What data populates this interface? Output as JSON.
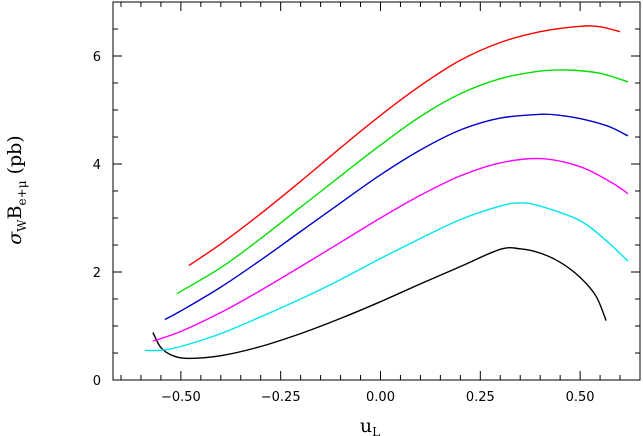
{
  "chart_data": {
    "type": "line",
    "title": "",
    "xlabel": "u",
    "xlabel_sub": "L",
    "ylabel": {
      "sigma": "σ",
      "sigma_sub": "W",
      "b": "B",
      "b_sub": "e+μ",
      "unit": " (pb)"
    },
    "xlim": [
      -0.67,
      0.65
    ],
    "ylim": [
      0,
      7
    ],
    "x_ticks": [
      {
        "value": -0.5,
        "label": "−0.50"
      },
      {
        "value": -0.25,
        "label": "−0.25"
      },
      {
        "value": 0,
        "label": "0.00"
      },
      {
        "value": 0.25,
        "label": "0.25"
      },
      {
        "value": 0.5,
        "label": "0.50"
      }
    ],
    "y_ticks": [
      {
        "value": 0,
        "label": "0"
      },
      {
        "value": 2,
        "label": "2"
      },
      {
        "value": 4,
        "label": "4"
      },
      {
        "value": 6,
        "label": "6"
      }
    ],
    "grid": false,
    "series": [
      {
        "color": "#000000",
        "points": [
          [
            -0.57,
            0.88
          ],
          [
            -0.55,
            0.6
          ],
          [
            -0.52,
            0.45
          ],
          [
            -0.48,
            0.4
          ],
          [
            -0.4,
            0.45
          ],
          [
            -0.3,
            0.62
          ],
          [
            -0.2,
            0.86
          ],
          [
            -0.1,
            1.14
          ],
          [
            0.0,
            1.45
          ],
          [
            0.1,
            1.78
          ],
          [
            0.2,
            2.1
          ],
          [
            0.3,
            2.42
          ],
          [
            0.35,
            2.43
          ],
          [
            0.4,
            2.35
          ],
          [
            0.45,
            2.18
          ],
          [
            0.5,
            1.9
          ],
          [
            0.54,
            1.55
          ],
          [
            0.565,
            1.1
          ]
        ]
      },
      {
        "color": "#00e5ee",
        "points": [
          [
            -0.59,
            0.55
          ],
          [
            -0.55,
            0.55
          ],
          [
            -0.5,
            0.62
          ],
          [
            -0.4,
            0.86
          ],
          [
            -0.3,
            1.17
          ],
          [
            -0.2,
            1.5
          ],
          [
            -0.1,
            1.86
          ],
          [
            0.0,
            2.25
          ],
          [
            0.1,
            2.62
          ],
          [
            0.2,
            2.97
          ],
          [
            0.3,
            3.22
          ],
          [
            0.35,
            3.28
          ],
          [
            0.4,
            3.22
          ],
          [
            0.5,
            2.95
          ],
          [
            0.57,
            2.55
          ],
          [
            0.62,
            2.2
          ]
        ]
      },
      {
        "color": "#ff00ff",
        "points": [
          [
            -0.57,
            0.72
          ],
          [
            -0.5,
            0.9
          ],
          [
            -0.4,
            1.25
          ],
          [
            -0.3,
            1.66
          ],
          [
            -0.2,
            2.1
          ],
          [
            -0.1,
            2.55
          ],
          [
            0.0,
            3.0
          ],
          [
            0.1,
            3.42
          ],
          [
            0.2,
            3.78
          ],
          [
            0.3,
            4.02
          ],
          [
            0.4,
            4.1
          ],
          [
            0.5,
            3.95
          ],
          [
            0.58,
            3.65
          ],
          [
            0.62,
            3.45
          ]
        ]
      },
      {
        "color": "#0000cd",
        "points": [
          [
            -0.54,
            1.12
          ],
          [
            -0.5,
            1.28
          ],
          [
            -0.4,
            1.72
          ],
          [
            -0.3,
            2.22
          ],
          [
            -0.2,
            2.75
          ],
          [
            -0.1,
            3.28
          ],
          [
            0.0,
            3.8
          ],
          [
            0.1,
            4.26
          ],
          [
            0.2,
            4.63
          ],
          [
            0.3,
            4.85
          ],
          [
            0.4,
            4.92
          ],
          [
            0.45,
            4.9
          ],
          [
            0.5,
            4.84
          ],
          [
            0.57,
            4.7
          ],
          [
            0.62,
            4.52
          ]
        ]
      },
      {
        "color": "#00e000",
        "points": [
          [
            -0.51,
            1.6
          ],
          [
            -0.4,
            2.08
          ],
          [
            -0.3,
            2.62
          ],
          [
            -0.2,
            3.2
          ],
          [
            -0.1,
            3.78
          ],
          [
            0.0,
            4.35
          ],
          [
            0.1,
            4.88
          ],
          [
            0.2,
            5.3
          ],
          [
            0.3,
            5.58
          ],
          [
            0.4,
            5.72
          ],
          [
            0.47,
            5.74
          ],
          [
            0.55,
            5.68
          ],
          [
            0.62,
            5.52
          ]
        ]
      },
      {
        "color": "#ff0000",
        "points": [
          [
            -0.48,
            2.12
          ],
          [
            -0.4,
            2.52
          ],
          [
            -0.3,
            3.08
          ],
          [
            -0.2,
            3.68
          ],
          [
            -0.1,
            4.3
          ],
          [
            0.0,
            4.9
          ],
          [
            0.1,
            5.45
          ],
          [
            0.2,
            5.92
          ],
          [
            0.3,
            6.25
          ],
          [
            0.4,
            6.45
          ],
          [
            0.5,
            6.55
          ],
          [
            0.55,
            6.54
          ],
          [
            0.6,
            6.45
          ]
        ]
      }
    ]
  }
}
